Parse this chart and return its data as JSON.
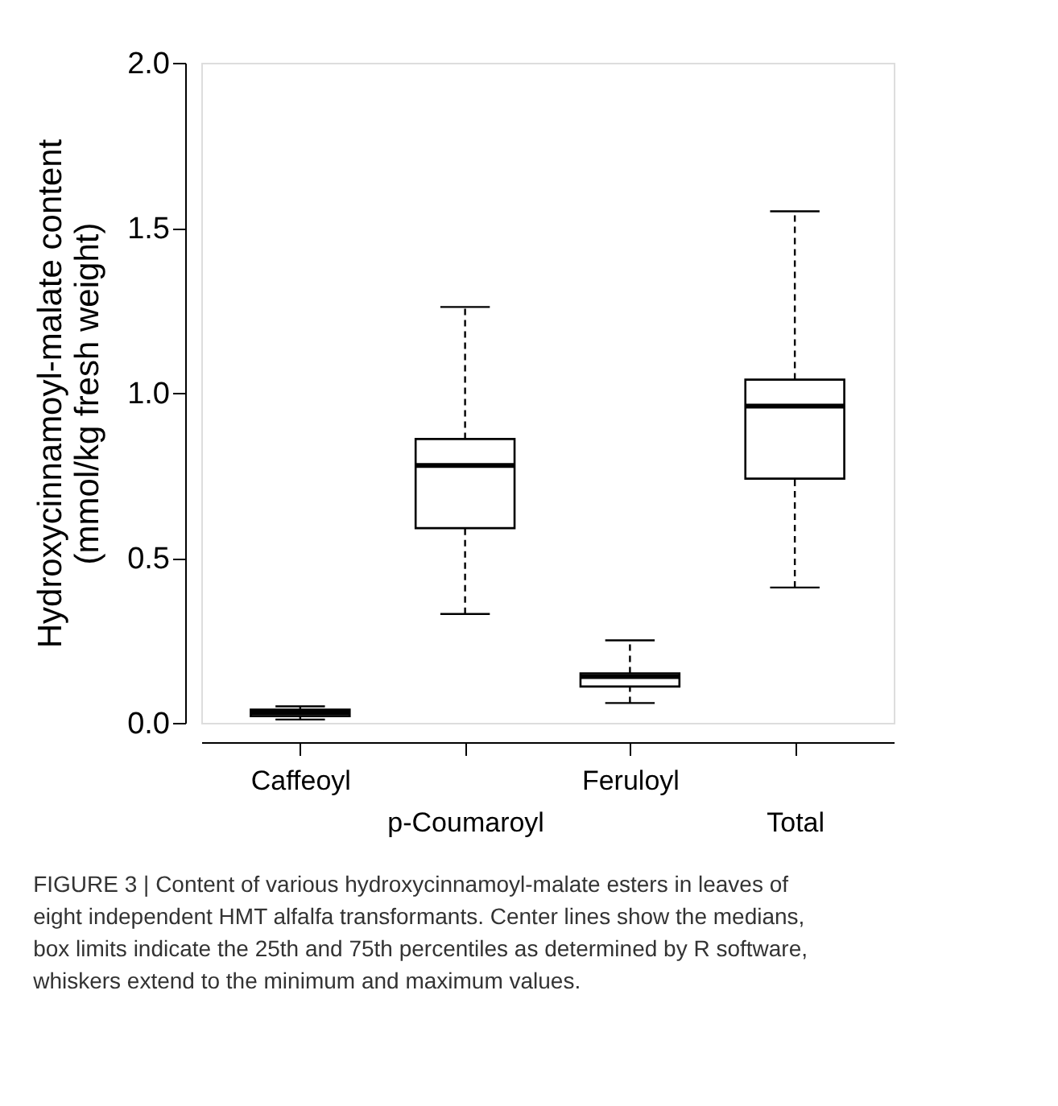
{
  "chart_data": {
    "type": "box",
    "ylabel": "Hydroxycinnamoyl-malate content\n(mmol/kg fresh weight)",
    "categories": [
      "Caffeoyl",
      "p-Coumaroyl",
      "Feruloyl",
      "Total"
    ],
    "boxes": [
      {
        "low": 0.01,
        "q1": 0.02,
        "median": 0.03,
        "q3": 0.04,
        "high": 0.05
      },
      {
        "low": 0.33,
        "q1": 0.59,
        "median": 0.78,
        "q3": 0.86,
        "high": 1.26
      },
      {
        "low": 0.06,
        "q1": 0.11,
        "median": 0.14,
        "q3": 0.15,
        "high": 0.25
      },
      {
        "low": 0.41,
        "q1": 0.74,
        "median": 0.96,
        "q3": 1.04,
        "high": 1.55
      }
    ],
    "ylim": [
      0,
      2
    ],
    "yticks": [
      {
        "value": 0,
        "label": "0.0"
      },
      {
        "value": 0.5,
        "label": "0.5"
      },
      {
        "value": 1,
        "label": "1.0"
      },
      {
        "value": 1.5,
        "label": "1.5"
      },
      {
        "value": 2,
        "label": "2.0"
      }
    ],
    "grid": false,
    "line_style": "dashed",
    "annotations": [
      "FIGURE 3 | Content of various hydroxycinnamoyl-malate esters in leaves of eight independent HMT alfalfa transformants. Center lines show the medians, box limits indicate the 25th and 75th percentiles as determined by R software, whiskers extend to the minimum and maximum values."
    ]
  }
}
